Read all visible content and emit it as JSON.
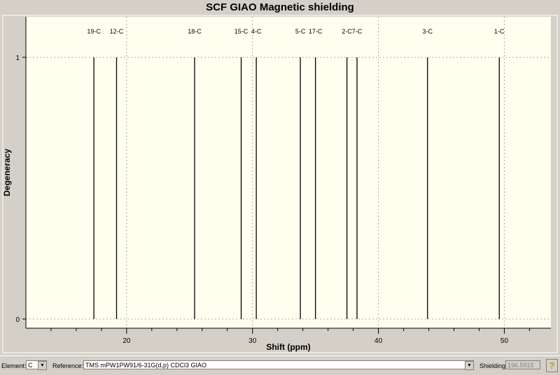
{
  "chart_data": {
    "type": "bar",
    "title": "SCF GIAO Magnetic shielding",
    "xlabel": "Shift (ppm)",
    "ylabel": "Degeneracy",
    "xlim": [
      12.0,
      53.7
    ],
    "ylim": [
      -0.035,
      1.155
    ],
    "xticks": [
      20,
      30,
      40,
      50
    ],
    "yticks": [
      0,
      1
    ],
    "grid": true,
    "peaks": [
      {
        "label": "19-C",
        "x": 17.4,
        "y": 1
      },
      {
        "label": "12-C",
        "x": 19.2,
        "y": 1
      },
      {
        "label": "18-C",
        "x": 25.4,
        "y": 1
      },
      {
        "label": "15-C",
        "x": 29.1,
        "y": 1
      },
      {
        "label": "4-C",
        "x": 30.3,
        "y": 1
      },
      {
        "label": "5-C",
        "x": 33.8,
        "y": 1
      },
      {
        "label": "17-C",
        "x": 35.0,
        "y": 1
      },
      {
        "label": "2-C",
        "x": 37.5,
        "y": 1
      },
      {
        "label": "7-C",
        "x": 38.3,
        "y": 1
      },
      {
        "label": "3-C",
        "x": 43.9,
        "y": 1
      },
      {
        "label": "1-C",
        "x": 49.6,
        "y": 1
      }
    ]
  },
  "toolbar": {
    "element_label": "Element:",
    "element_value": "C",
    "reference_label": "Reference:",
    "reference_value": "TMS mPW1PW91/6-31G(d,p) CDCl3 GIAO",
    "shielding_label": "Shielding:",
    "shielding_value": "196.5915",
    "help_icon": "question-icon"
  }
}
